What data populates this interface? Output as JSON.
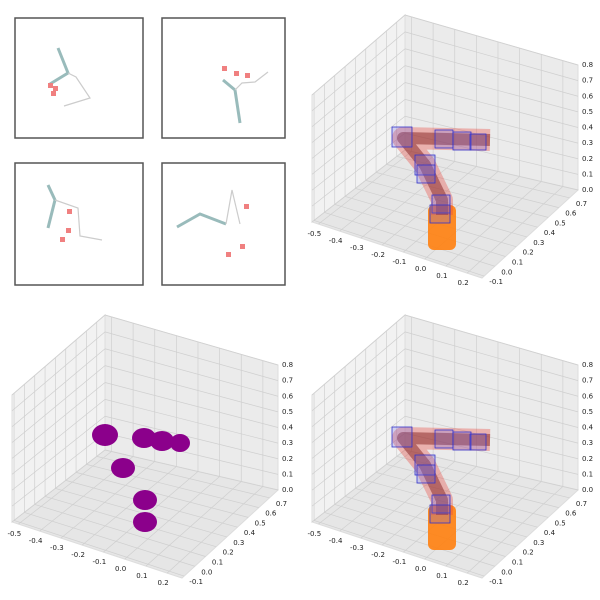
{
  "panels": [
    {
      "x_tick_labels": [
        "-0.5",
        "-0.4",
        "-0.3",
        "-0.2",
        "-0.1",
        "0.0",
        "0.1",
        "0.2"
      ],
      "y_tick_labels": [
        "-0.1",
        "0.0",
        "0.1",
        "0.2",
        "0.3",
        "0.4",
        "0.5",
        "0.6",
        "0.7"
      ],
      "z_tick_labels": [
        "0.0",
        "0.1",
        "0.2",
        "0.3",
        "0.4",
        "0.5",
        "0.6",
        "0.7",
        "0.8"
      ]
    },
    {
      "x_tick_labels": [
        "-0.5",
        "-0.4",
        "-0.3",
        "-0.2",
        "-0.1",
        "0.0",
        "0.1",
        "0.2"
      ],
      "y_tick_labels": [
        "-0.1",
        "0.0",
        "0.1",
        "0.2",
        "0.3",
        "0.4",
        "0.5",
        "0.6",
        "0.7"
      ],
      "z_tick_labels": [
        "0.0",
        "0.1",
        "0.2",
        "0.3",
        "0.4",
        "0.5",
        "0.6",
        "0.7",
        "0.8"
      ]
    },
    {
      "x_tick_labels": [
        "-0.5",
        "-0.4",
        "-0.3",
        "-0.2",
        "-0.1",
        "0.0",
        "0.1",
        "0.2"
      ],
      "y_tick_labels": [
        "-0.1",
        "0.0",
        "0.1",
        "0.2",
        "0.3",
        "0.4",
        "0.5",
        "0.6",
        "0.7"
      ],
      "z_tick_labels": [
        "0.0",
        "0.1",
        "0.2",
        "0.3",
        "0.4",
        "0.5",
        "0.6",
        "0.7",
        "0.8"
      ]
    }
  ]
}
